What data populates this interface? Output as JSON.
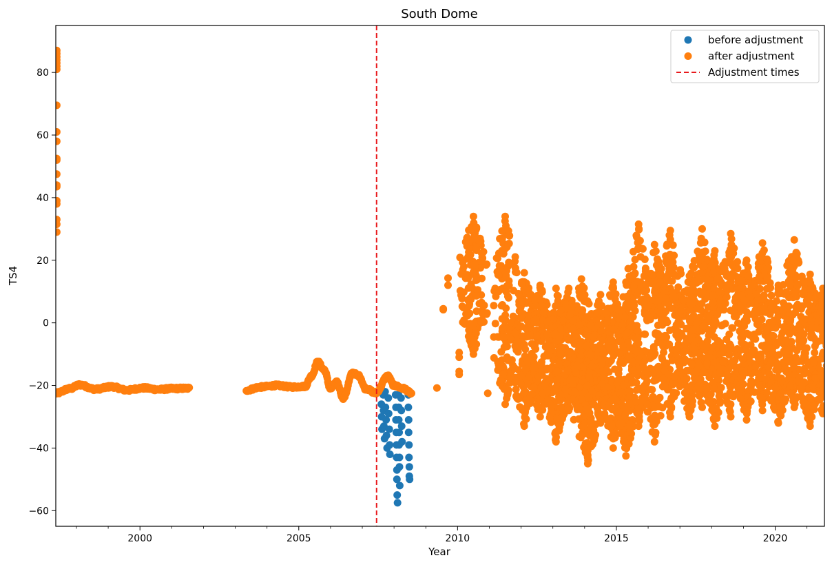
{
  "chart_data": {
    "type": "scatter",
    "title": "South Dome",
    "xlabel": "Year",
    "ylabel": "TS4",
    "xlim": [
      1997.35,
      2021.55
    ],
    "ylim": [
      -65,
      95
    ],
    "xticks_major": [
      2000,
      2005,
      2010,
      2015,
      2020
    ],
    "xticks_minor_step": 1,
    "yticks": [
      -60,
      -40,
      -20,
      0,
      20,
      40,
      60,
      80
    ],
    "grid": false,
    "legend_position": "top-right",
    "adjustment_times": [
      2007.45
    ],
    "colors": {
      "before": "#1f77b4",
      "after": "#ff7f0e",
      "adjust_line": "#e8191c",
      "axes": "#000000"
    },
    "legend": [
      {
        "label": "before adjustment",
        "marker": "dot",
        "color": "#1f77b4"
      },
      {
        "label": "after adjustment",
        "marker": "dot",
        "color": "#ff7f0e"
      },
      {
        "label": "Adjustment times",
        "marker": "dashed-line",
        "color": "#e8191c"
      }
    ],
    "series": [
      {
        "name": "before adjustment",
        "color": "#1f77b4",
        "description": "blue points visible only where they differ from adjusted values, 2007.6-2008.5",
        "points": [
          [
            2007.6,
            -22
          ],
          [
            2007.6,
            -26
          ],
          [
            2007.61,
            -30
          ],
          [
            2007.62,
            -34
          ],
          [
            2007.66,
            -23
          ],
          [
            2007.67,
            -28
          ],
          [
            2007.68,
            -33
          ],
          [
            2007.7,
            -37
          ],
          [
            2007.72,
            -22
          ],
          [
            2007.73,
            -27
          ],
          [
            2007.75,
            -31
          ],
          [
            2007.76,
            -36
          ],
          [
            2007.78,
            -40
          ],
          [
            2007.82,
            -24
          ],
          [
            2007.83,
            -29
          ],
          [
            2007.85,
            -34
          ],
          [
            2007.86,
            -39
          ],
          [
            2007.87,
            -42
          ],
          [
            2008.05,
            -23
          ],
          [
            2008.06,
            -27
          ],
          [
            2008.06,
            -31
          ],
          [
            2008.07,
            -35
          ],
          [
            2008.08,
            -39
          ],
          [
            2008.08,
            -43
          ],
          [
            2008.09,
            -47
          ],
          [
            2008.09,
            -50
          ],
          [
            2008.1,
            -55
          ],
          [
            2008.11,
            -57.5
          ],
          [
            2008.14,
            -23
          ],
          [
            2008.15,
            -27
          ],
          [
            2008.15,
            -31
          ],
          [
            2008.16,
            -35
          ],
          [
            2008.16,
            -39
          ],
          [
            2008.17,
            -43
          ],
          [
            2008.17,
            -46
          ],
          [
            2008.18,
            -52
          ],
          [
            2008.22,
            -24
          ],
          [
            2008.23,
            -28
          ],
          [
            2008.24,
            -33
          ],
          [
            2008.25,
            -38
          ],
          [
            2008.45,
            -23
          ],
          [
            2008.45,
            -27
          ],
          [
            2008.46,
            -31
          ],
          [
            2008.46,
            -35
          ],
          [
            2008.47,
            -39
          ],
          [
            2008.47,
            -43
          ],
          [
            2008.48,
            -46
          ],
          [
            2008.48,
            -49
          ],
          [
            2008.49,
            -50
          ]
        ]
      },
      {
        "name": "after adjustment",
        "color": "#ff7f0e",
        "description": "orange points; dense smooth segments plus high-variance period after 2009",
        "early_spike": {
          "x": 1997.38,
          "values": [
            87,
            86,
            85,
            84,
            83,
            82,
            81,
            69.5,
            61,
            58,
            52.5,
            52,
            47.5,
            44,
            43.5,
            39,
            38,
            33,
            31.5,
            29
          ]
        },
        "smooth_segments": [
          {
            "x_start": 1997.35,
            "x_end": 2001.55,
            "base": -21,
            "profile": [
              [
                1997.35,
                -22.5
              ],
              [
                1997.8,
                -21
              ],
              [
                1998.1,
                -19.8
              ],
              [
                1998.6,
                -21.2
              ],
              [
                1999.1,
                -20.4
              ],
              [
                1999.6,
                -21.5
              ],
              [
                2000.1,
                -20.8
              ],
              [
                2000.6,
                -21.3
              ],
              [
                2001.0,
                -21
              ],
              [
                2001.55,
                -20.9
              ]
            ]
          },
          {
            "x_start": 2003.35,
            "x_end": 2007.45,
            "base": -21,
            "profile": [
              [
                2003.35,
                -21.5
              ],
              [
                2003.8,
                -20.5
              ],
              [
                2004.3,
                -20
              ],
              [
                2004.8,
                -20.5
              ],
              [
                2005.2,
                -20.3
              ],
              [
                2005.4,
                -17
              ],
              [
                2005.6,
                -12.5
              ],
              [
                2005.8,
                -15
              ],
              [
                2006.0,
                -21
              ],
              [
                2006.2,
                -19
              ],
              [
                2006.4,
                -24
              ],
              [
                2006.7,
                -16
              ],
              [
                2006.9,
                -17
              ],
              [
                2007.1,
                -21
              ],
              [
                2007.45,
                -22.5
              ]
            ]
          },
          {
            "x_start": 2007.45,
            "x_end": 2008.55,
            "base": -20,
            "profile": [
              [
                2007.45,
                -22
              ],
              [
                2007.8,
                -17
              ],
              [
                2008.0,
                -20
              ],
              [
                2008.3,
                -21
              ],
              [
                2008.55,
                -22.5
              ]
            ]
          }
        ],
        "isolated_points": [
          [
            2009.35,
            -20.8
          ],
          [
            2009.55,
            4.2
          ],
          [
            2009.55,
            4.5
          ],
          [
            2009.7,
            12
          ],
          [
            2009.7,
            14.3
          ],
          [
            2010.05,
            -9.5
          ],
          [
            2010.05,
            -11
          ],
          [
            2010.05,
            -15.5
          ],
          [
            2010.05,
            -16.5
          ],
          [
            2010.2,
            18
          ],
          [
            2010.95,
            -22.5
          ],
          [
            2010.9,
            18.5
          ]
        ],
        "annual_clusters": [
          {
            "x": 2010.5,
            "min": -10,
            "max": 34
          },
          {
            "x": 2011.5,
            "min": -26,
            "max": 34
          },
          {
            "x": 2012.1,
            "min": -33,
            "max": 16
          },
          {
            "x": 2012.6,
            "min": -30,
            "max": 12
          },
          {
            "x": 2013.1,
            "min": -38,
            "max": 11
          },
          {
            "x": 2013.5,
            "min": -28,
            "max": 11
          },
          {
            "x": 2013.9,
            "min": -33,
            "max": 14
          },
          {
            "x": 2014.1,
            "min": -45,
            "max": 2
          },
          {
            "x": 2014.5,
            "min": -32,
            "max": 9
          },
          {
            "x": 2014.9,
            "min": -40,
            "max": 13
          },
          {
            "x": 2015.3,
            "min": -42.5,
            "max": 13
          },
          {
            "x": 2015.7,
            "min": -33,
            "max": 31.5
          },
          {
            "x": 2016.2,
            "min": -38,
            "max": 25
          },
          {
            "x": 2016.7,
            "min": -30,
            "max": 29.5
          },
          {
            "x": 2017.3,
            "min": -30,
            "max": 15
          },
          {
            "x": 2017.7,
            "min": -27,
            "max": 30
          },
          {
            "x": 2018.1,
            "min": -33,
            "max": 23
          },
          {
            "x": 2018.6,
            "min": -30,
            "max": 28.5
          },
          {
            "x": 2019.1,
            "min": -31,
            "max": 20
          },
          {
            "x": 2019.6,
            "min": -28,
            "max": 25.5
          },
          {
            "x": 2020.1,
            "min": -32,
            "max": 12
          },
          {
            "x": 2020.6,
            "min": -27,
            "max": 26.5
          },
          {
            "x": 2021.1,
            "min": -33,
            "max": 15.5
          },
          {
            "x": 2021.5,
            "min": -29,
            "max": 11
          }
        ]
      }
    ]
  }
}
